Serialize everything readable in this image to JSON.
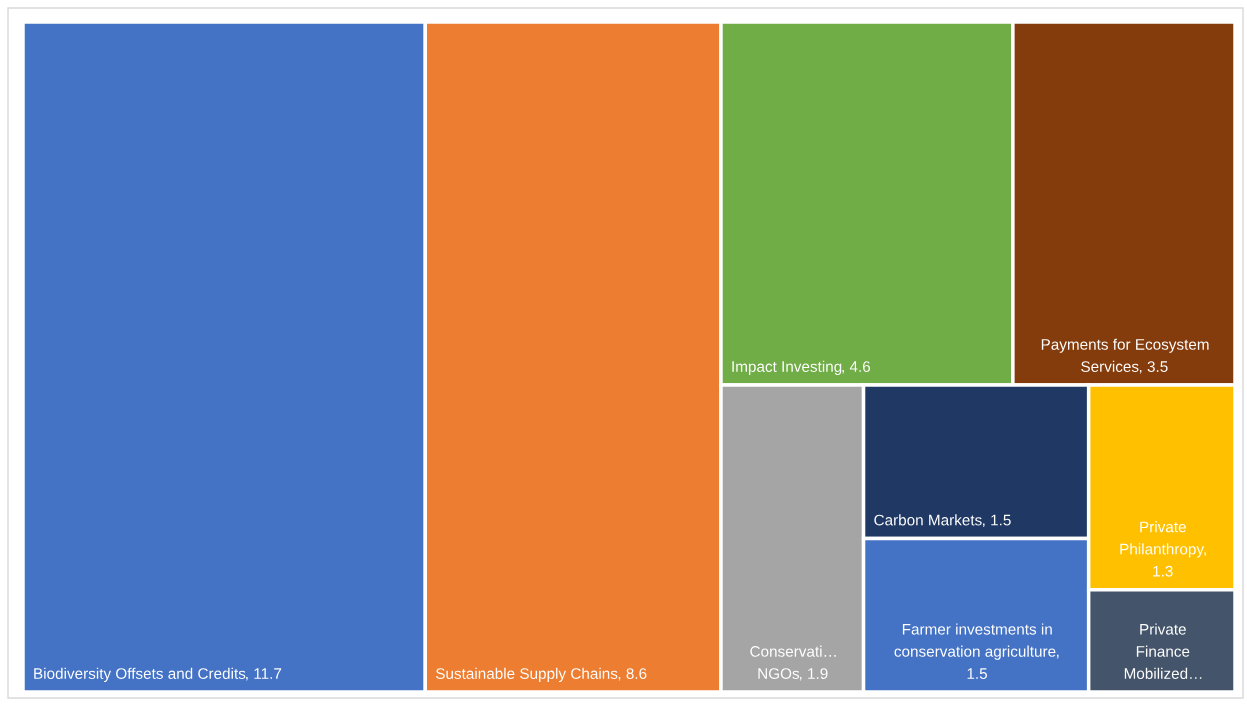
{
  "chart_data": {
    "type": "other",
    "categories": [
      "Biodiversity Offsets and Credits",
      "Sustainable Supply Chains",
      "Impact Investing",
      "Payments for Ecosystem Services",
      "Conservati… NGOs",
      "Carbon Markets",
      "Farmer investments in conservation agriculture",
      "Private Philanthropy",
      "Private Finance Mobilized…"
    ],
    "values": [
      11.7,
      8.6,
      4.6,
      3.5,
      1.9,
      1.5,
      1.5,
      1.3,
      null
    ],
    "value_labels": [
      "11.7",
      "8.6",
      "4.6",
      "3.5",
      "1.9",
      "1.5",
      "1.5",
      "1.3",
      null
    ],
    "colors": [
      "#4472c4",
      "#ed7d31",
      "#70ad47",
      "#843c0c",
      "#a5a5a5",
      "#203864",
      "#4472c4",
      "#ffc000",
      "#44546a"
    ]
  }
}
